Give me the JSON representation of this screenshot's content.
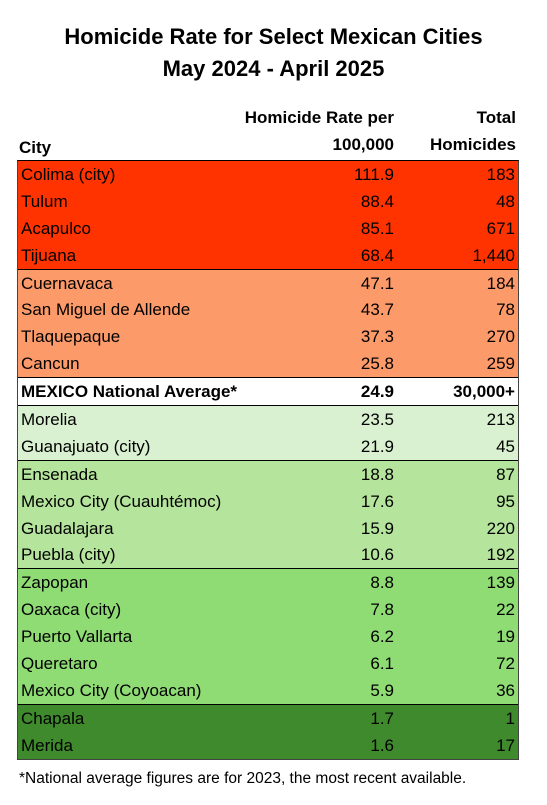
{
  "title_line1": "Homicide Rate for Select Mexican Cities",
  "title_line2": "May 2024 - April 2025",
  "headers": {
    "city": "City",
    "rate_line1": "Homicide Rate per",
    "rate_line2": "100,000",
    "total_line1": "Total",
    "total_line2": "Homicides"
  },
  "colors": {
    "red": "#ff3300",
    "orange": "#fc9a6a",
    "white": "#ffffff",
    "light_green": "#d9f1d0",
    "mid_green": "#b5e59c",
    "green": "#8fdb74",
    "dark_green": "#3f8a2c"
  },
  "rows": [
    {
      "city": "Colima (city)",
      "rate": "111.9",
      "total": "183",
      "band": "red"
    },
    {
      "city": "Tulum",
      "rate": "88.4",
      "total": "48",
      "band": "red"
    },
    {
      "city": "Acapulco",
      "rate": "85.1",
      "total": "671",
      "band": "red"
    },
    {
      "city": "Tijuana",
      "rate": "68.4",
      "total": "1,440",
      "band": "red"
    },
    {
      "city": "Cuernavaca",
      "rate": "47.1",
      "total": "184",
      "band": "orange"
    },
    {
      "city": "San Miguel de Allende",
      "rate": "43.7",
      "total": "78",
      "band": "orange"
    },
    {
      "city": "Tlaquepaque",
      "rate": "37.3",
      "total": "270",
      "band": "orange"
    },
    {
      "city": "Cancun",
      "rate": "25.8",
      "total": "259",
      "band": "orange"
    },
    {
      "city": "MEXICO National Average*",
      "rate": "24.9",
      "total": "30,000+",
      "band": "white"
    },
    {
      "city": "Morelia",
      "rate": "23.5",
      "total": "213",
      "band": "light"
    },
    {
      "city": "Guanajuato (city)",
      "rate": "21.9",
      "total": "45",
      "band": "light"
    },
    {
      "city": "Ensenada",
      "rate": "18.8",
      "total": "87",
      "band": "mid"
    },
    {
      "city": "Mexico City (Cuauhtémoc)",
      "rate": "17.6",
      "total": "95",
      "band": "mid"
    },
    {
      "city": "Guadalajara",
      "rate": "15.9",
      "total": "220",
      "band": "mid"
    },
    {
      "city": "Puebla (city)",
      "rate": "10.6",
      "total": "192",
      "band": "mid"
    },
    {
      "city": "Zapopan",
      "rate": "8.8",
      "total": "139",
      "band": "green"
    },
    {
      "city": "Oaxaca (city)",
      "rate": "7.8",
      "total": "22",
      "band": "green"
    },
    {
      "city": "Puerto Vallarta",
      "rate": "6.2",
      "total": "19",
      "band": "green"
    },
    {
      "city": "Queretaro",
      "rate": "6.1",
      "total": "72",
      "band": "green"
    },
    {
      "city": "Mexico City (Coyoacan)",
      "rate": "5.9",
      "total": "36",
      "band": "green"
    },
    {
      "city": "Chapala",
      "rate": "1.7",
      "total": "1",
      "band": "dark"
    },
    {
      "city": "Merida",
      "rate": "1.6",
      "total": "17",
      "band": "dark"
    }
  ],
  "footnote": "*National average figures are for 2023, the most recent available."
}
